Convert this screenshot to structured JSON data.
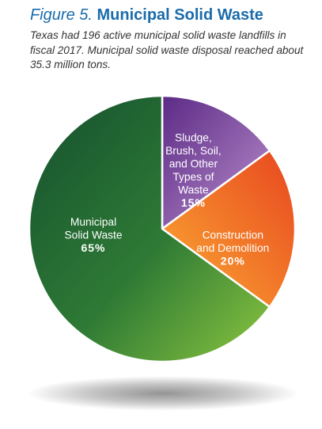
{
  "figure": {
    "label": "Figure 5.",
    "title": "Municipal Solid Waste",
    "caption": "Texas had 196 active municipal solid waste landfills in fiscal 2017. Municipal solid waste disposal reached about 35.3 million tons."
  },
  "chart_data": {
    "type": "pie",
    "slices": [
      {
        "label": [
          "Sludge,",
          "Brush, Soil,",
          "and Other",
          "Types of",
          "Waste"
        ],
        "value": 15,
        "value_label": "15%",
        "color": "#7b3a96"
      },
      {
        "label": [
          "Construction",
          "and Demolition"
        ],
        "value": 20,
        "value_label": "20%",
        "color": "#f26a2b"
      },
      {
        "label": [
          "Municipal",
          "Solid Waste"
        ],
        "value": 65,
        "value_label": "65%",
        "color": "#3f8f3c"
      }
    ]
  }
}
